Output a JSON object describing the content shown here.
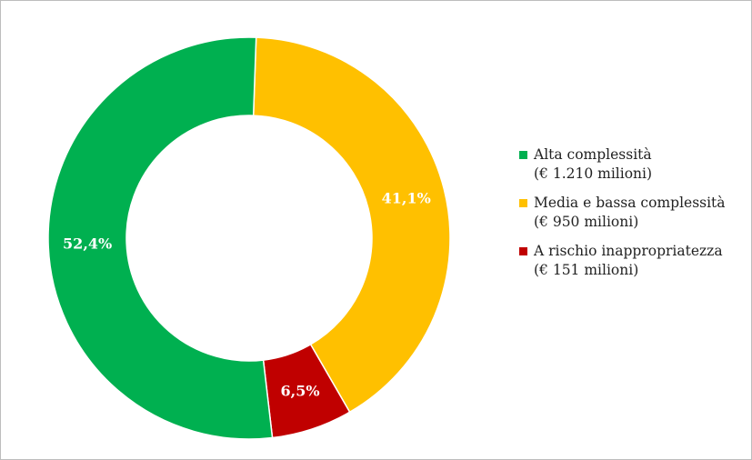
{
  "chart_data": {
    "type": "pie",
    "donut": true,
    "slices": [
      {
        "label": "Alta complessità",
        "sublabel": "(€ 1.210 milioni)",
        "value": 52.4,
        "display": "52,4%",
        "color": "#00b050"
      },
      {
        "label": "Media e bassa complessità",
        "sublabel": "(€ 950 milioni)",
        "value": 41.1,
        "display": "41,1%",
        "color": "#ffc000"
      },
      {
        "label": "A rischio inappropriatezza",
        "sublabel": "(€ 151 milioni)",
        "value": 6.5,
        "display": "6,5%",
        "color": "#c00000"
      }
    ],
    "legend_position": "right"
  }
}
